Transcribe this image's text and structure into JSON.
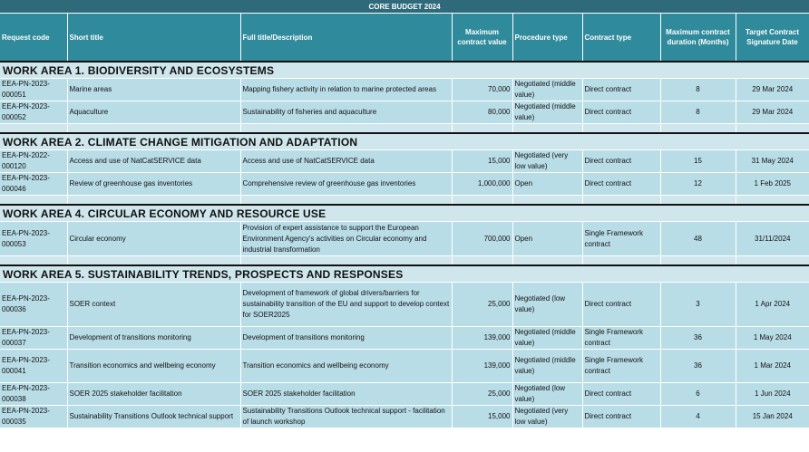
{
  "title": "CORE BUDGET 2024",
  "headers": {
    "request_code": "Request code",
    "short_title": "Short title",
    "full_title": "Full title/Description",
    "max_value": "Maximum contract value",
    "procedure": "Procedure type",
    "contract_type": "Contract type",
    "max_duration": "Maximum contract duration (Months)",
    "target_date": "Target Contract Signature Date"
  },
  "work_areas": [
    {
      "title": "WORK AREA 1. BIODIVERSITY AND ECOSYSTEMS",
      "rows": [
        {
          "code": "EEA-PN-2023-000051",
          "short": "Marine areas",
          "full": "Mapping fishery activity in relation to marine protected areas",
          "value": "70,000",
          "procedure": "Negotiated (middle value)",
          "contract": "Direct contract",
          "duration": "8",
          "date": "29 Mar 2024"
        },
        {
          "code": "EEA-PN-2023-000052",
          "short": "Aquaculture",
          "full": "Sustainability of fisheries and aquaculture",
          "value": "80,000",
          "procedure": "Negotiated (middle value)",
          "contract": "Direct contract",
          "duration": "8",
          "date": "29 Mar 2024"
        }
      ]
    },
    {
      "title": "WORK AREA 2. CLIMATE CHANGE MITIGATION AND ADAPTATION",
      "rows": [
        {
          "code": "EEA-PN-2022-000120",
          "short": "Access and use of NatCatSERVICE data",
          "full": "Access and use of NatCatSERVICE data",
          "value": "15,000",
          "procedure": "Negotiated (very low value)",
          "contract": "Direct contract",
          "duration": "15",
          "date": "31 May 2024"
        },
        {
          "code": "EEA-PN-2023-000046",
          "short": "Review of greenhouse gas inventories",
          "full": "Comprehensive review of greenhouse gas inventories",
          "value": "1,000,000",
          "procedure": "Open",
          "contract": "Direct contract",
          "duration": "12",
          "date": "1 Feb 2025"
        }
      ]
    },
    {
      "title": "WORK AREA 4. CIRCULAR ECONOMY AND RESOURCE USE",
      "rows": [
        {
          "code": "EEA-PN-2023-000053",
          "short": "Circular economy",
          "full": "Provision of expert assistance to support the European Environment Agency's activities on Circular economy and industrial transformation",
          "value": "700,000",
          "procedure": "Open",
          "contract": "Single Framework contract",
          "duration": "48",
          "date": "31/11/2024"
        }
      ]
    },
    {
      "title": "WORK AREA 5. SUSTAINABILITY TRENDS, PROSPECTS AND RESPONSES",
      "rows": [
        {
          "code": "EEA-PN-2023-000036",
          "short": "SOER context",
          "full": "Development of framework of global drivers/barriers for sustainability transition of the EU and support to develop context for SOER2025",
          "value": "25,000",
          "procedure": "Negotiated (low value)",
          "contract": "Direct contract",
          "duration": "3",
          "date": "1 Apr 2024"
        },
        {
          "code": "EEA-PN-2023-000037",
          "short": "Development of transitions monitoring",
          "full": "Development of transitions monitoring",
          "value": "139,000",
          "procedure": "Negotiated (middle value)",
          "contract": "Single Framework contract",
          "duration": "36",
          "date": "1 May 2024"
        },
        {
          "code": "EEA-PN-2023-000041",
          "short": "Transition economics and wellbeing economy",
          "full": "Transition economics and wellbeing economy",
          "value": "139,000",
          "procedure": "Negotiated (middle value)",
          "contract": "Single Framework contract",
          "duration": "36",
          "date": "1 Mar 2024"
        },
        {
          "code": "EEA-PN-2023-000038",
          "short": "SOER 2025 stakeholder facilitation",
          "full": "SOER 2025 stakeholder facilitation",
          "value": "25,000",
          "procedure": "Negotiated (low value)",
          "contract": "Direct contract",
          "duration": "6",
          "date": "1 Jun 2024"
        },
        {
          "code": "EEA-PN-2023-000035",
          "short": "Sustainability Transitions Outlook technical support",
          "full": "Sustainability Transitions Outlook technical support - facilitation of launch workshop",
          "value": "15,000",
          "procedure": "Negotiated (very low value)",
          "contract": "Direct contract",
          "duration": "4",
          "date": "15 Jan 2024"
        }
      ]
    }
  ]
}
